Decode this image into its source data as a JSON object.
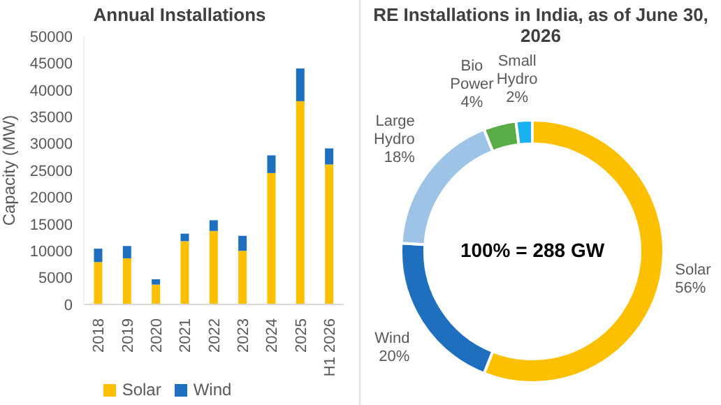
{
  "chart_data": [
    {
      "type": "bar",
      "title": "Annual Installations",
      "ylabel": "Capacity (MW)",
      "categories": [
        "2018",
        "2019",
        "2020",
        "2021",
        "2022",
        "2023",
        "2024",
        "2025",
        "H1 2026"
      ],
      "stacked": true,
      "series": [
        {
          "name": "Solar",
          "color": "#fcc000",
          "values": [
            7900,
            8600,
            3700,
            11800,
            13700,
            10000,
            24500,
            37900,
            26100
          ]
        },
        {
          "name": "Wind",
          "color": "#1f6fbf",
          "values": [
            2500,
            2300,
            1000,
            1400,
            2000,
            2800,
            3300,
            6100,
            3000
          ]
        }
      ],
      "ylim": [
        0,
        50000
      ],
      "yticks": [
        0,
        5000,
        10000,
        15000,
        20000,
        25000,
        30000,
        35000,
        40000,
        45000,
        50000
      ],
      "grid": false,
      "legend": "bottom"
    },
    {
      "type": "donut",
      "title": "RE Installations in India, as of June 30, 2026",
      "categories": [
        "Solar",
        "Wind",
        "Large Hydro",
        "Bio Power",
        "Small Hydro"
      ],
      "values": [
        56,
        20,
        18,
        4,
        2
      ],
      "colors": [
        "#fcc000",
        "#1f6fbf",
        "#9dc3e6",
        "#5aac47",
        "#1ab0f0"
      ],
      "value_labels": [
        "56%",
        "20%",
        "18%",
        "4%",
        "2%"
      ],
      "annotations": [
        "100% = 288 GW"
      ]
    }
  ]
}
